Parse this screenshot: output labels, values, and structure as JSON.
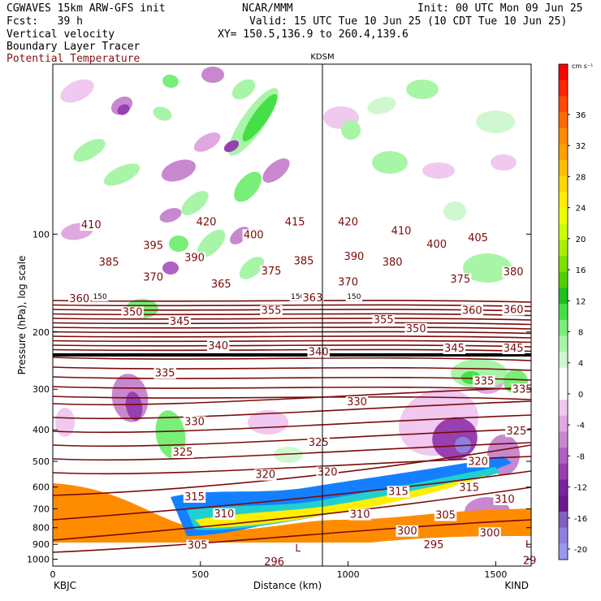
{
  "header": {
    "model": "CGWAVES 15km ARW-GFS init",
    "org": "NCAR/MMM",
    "init": "Init: 00 UTC Mon 09 Jun 25",
    "fcst": "Fcst:   39 h",
    "valid": "Valid: 15 UTC Tue 10 Jun 25 (10 CDT Tue 10 Jun 25)",
    "xy": "XY= 150.5,136.9 to 260.4,139.6",
    "field1": "Vertical velocity",
    "field2": "Boundary Layer Tracer",
    "field3": "Potential Temperature"
  },
  "colors": {
    "theta": "#7a0a0a",
    "field3_text": "#8b1010"
  },
  "chart_data": {
    "type": "heatmap",
    "station_marker": "KDSM",
    "xlabel": "Distance (km)",
    "ylabel": "Pressure (hPa), log scale",
    "x_ticks": [
      "0",
      "500",
      "1000",
      "1500"
    ],
    "x_end_labels": {
      "left": "KBJC",
      "right": "KIND"
    },
    "y_ticks": [
      "100",
      "200",
      "300",
      "400",
      "500",
      "600",
      "700",
      "800",
      "900",
      "1000"
    ],
    "xlim": [
      0,
      1620
    ],
    "ylim_hPa": [
      1050,
      30
    ],
    "colorbar": {
      "units": "cm s⁻¹",
      "ticks": [
        "36",
        "32",
        "28",
        "24",
        "20",
        "16",
        "12",
        "8",
        "4",
        "0",
        "-4",
        "-8",
        "-12",
        "-16",
        "-20"
      ],
      "colors": [
        "#ff0000",
        "#ff2400",
        "#ff4a00",
        "#ff6a00",
        "#ff8c00",
        "#ffa000",
        "#ffbe00",
        "#ffd800",
        "#ffee00",
        "#eeff00",
        "#ccff00",
        "#a8f000",
        "#7ee000",
        "#50d000",
        "#20c020",
        "#46e046",
        "#78ef78",
        "#a8f5a8",
        "#d0f8d0",
        "#ffffff",
        "#ffffff",
        "#f0c8f0",
        "#e0a8e0",
        "#c888d0",
        "#b060c0",
        "#9840b0",
        "#7a22a0",
        "#6a1a8e",
        "#8060c0",
        "#8c80e0",
        "#9898f0"
      ]
    },
    "isentrope_labels": [
      {
        "text": "410",
        "x": 130,
        "p": 96
      },
      {
        "text": "420",
        "x": 520,
        "p": 94
      },
      {
        "text": "415",
        "x": 820,
        "p": 94
      },
      {
        "text": "420",
        "x": 1000,
        "p": 94
      },
      {
        "text": "410",
        "x": 1180,
        "p": 100
      },
      {
        "text": "385",
        "x": 190,
        "p": 125
      },
      {
        "text": "395",
        "x": 340,
        "p": 111
      },
      {
        "text": "390",
        "x": 480,
        "p": 121
      },
      {
        "text": "400",
        "x": 680,
        "p": 103
      },
      {
        "text": "385",
        "x": 850,
        "p": 124
      },
      {
        "text": "390",
        "x": 1020,
        "p": 120
      },
      {
        "text": "380",
        "x": 1150,
        "p": 125
      },
      {
        "text": "400",
        "x": 1300,
        "p": 110
      },
      {
        "text": "405",
        "x": 1440,
        "p": 105
      },
      {
        "text": "370",
        "x": 340,
        "p": 139
      },
      {
        "text": "365",
        "x": 570,
        "p": 146
      },
      {
        "text": "375",
        "x": 740,
        "p": 133
      },
      {
        "text": "370",
        "x": 1000,
        "p": 144
      },
      {
        "text": "375",
        "x": 1380,
        "p": 141
      },
      {
        "text": "380",
        "x": 1560,
        "p": 134
      },
      {
        "text": "360",
        "x": 90,
        "p": 162
      },
      {
        "text": "150",
        "x": 160,
        "p": 158
      },
      {
        "text": "150",
        "x": 830,
        "p": 158
      },
      {
        "text": "150",
        "x": 1020,
        "p": 158
      },
      {
        "text": "363",
        "x": 880,
        "p": 161
      },
      {
        "text": "350",
        "x": 270,
        "p": 178
      },
      {
        "text": "355",
        "x": 740,
        "p": 176
      },
      {
        "text": "360",
        "x": 1420,
        "p": 176
      },
      {
        "text": "360",
        "x": 1560,
        "p": 175
      },
      {
        "text": "345",
        "x": 430,
        "p": 190
      },
      {
        "text": "355",
        "x": 1120,
        "p": 188
      },
      {
        "text": "350",
        "x": 1230,
        "p": 200
      },
      {
        "text": "340",
        "x": 560,
        "p": 226
      },
      {
        "text": "340",
        "x": 900,
        "p": 236
      },
      {
        "text": "345",
        "x": 1360,
        "p": 230
      },
      {
        "text": "345",
        "x": 1560,
        "p": 230
      },
      {
        "text": "335",
        "x": 380,
        "p": 274
      },
      {
        "text": "335",
        "x": 1460,
        "p": 290
      },
      {
        "text": "335",
        "x": 1590,
        "p": 307
      },
      {
        "text": "330",
        "x": 480,
        "p": 387
      },
      {
        "text": "330",
        "x": 1030,
        "p": 336
      },
      {
        "text": "325",
        "x": 440,
        "p": 480
      },
      {
        "text": "325",
        "x": 900,
        "p": 448
      },
      {
        "text": "325",
        "x": 1570,
        "p": 414
      },
      {
        "text": "320",
        "x": 720,
        "p": 563
      },
      {
        "text": "320",
        "x": 930,
        "p": 553
      },
      {
        "text": "320",
        "x": 1440,
        "p": 513
      },
      {
        "text": "315",
        "x": 480,
        "p": 659
      },
      {
        "text": "315",
        "x": 1170,
        "p": 634
      },
      {
        "text": "315",
        "x": 1410,
        "p": 617
      },
      {
        "text": "310",
        "x": 580,
        "p": 744
      },
      {
        "text": "310",
        "x": 1040,
        "p": 746
      },
      {
        "text": "310",
        "x": 1530,
        "p": 670
      },
      {
        "text": "305",
        "x": 1330,
        "p": 750
      },
      {
        "text": "305",
        "x": 490,
        "p": 928
      },
      {
        "text": "300",
        "x": 1200,
        "p": 838
      },
      {
        "text": "300",
        "x": 1480,
        "p": 850
      },
      {
        "text": "295",
        "x": 1290,
        "p": 925
      },
      {
        "text": "296",
        "x": 750,
        "p": 1044
      },
      {
        "text": "29",
        "x": 1615,
        "p": 1034
      }
    ],
    "low_markers": [
      {
        "text": "L",
        "x": 830,
        "p": 948
      },
      {
        "text": "L",
        "x": 1610,
        "p": 920
      }
    ]
  }
}
